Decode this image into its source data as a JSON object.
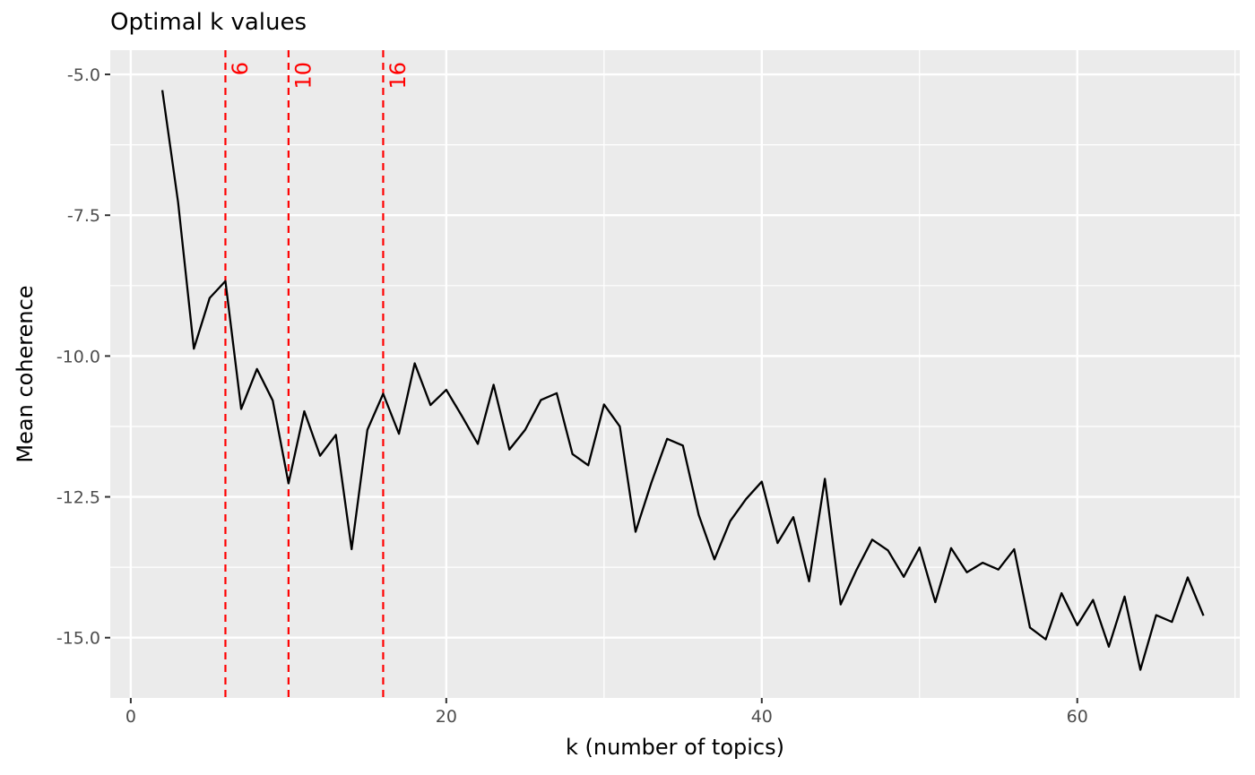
{
  "chart_data": {
    "type": "line",
    "title": "Optimal k values",
    "xlabel": "k (number of topics)",
    "ylabel": "Mean coherence",
    "xlim": [
      -1.3,
      70.3
    ],
    "ylim": [
      -16.07,
      -4.57
    ],
    "x_ticks": [
      0,
      20,
      40,
      60
    ],
    "x_tick_labels": [
      "0",
      "20",
      "40",
      "60"
    ],
    "y_ticks": [
      -5.0,
      -7.5,
      -10.0,
      -12.5,
      -15.0
    ],
    "y_tick_labels": [
      "-5.0",
      "-7.5",
      "-10.0",
      "-12.5",
      "-15.0"
    ],
    "grid": true,
    "background": "#ebebeb",
    "line_color": "#000000",
    "series": [
      {
        "x": [
          2,
          3,
          4,
          5,
          6,
          7,
          8,
          9,
          10,
          11,
          12,
          13,
          14,
          15,
          16,
          17,
          18,
          19,
          20,
          21,
          22,
          23,
          24,
          25,
          26,
          27,
          28,
          29,
          30,
          31,
          32,
          33,
          34,
          35,
          36,
          37,
          38,
          39,
          40,
          41,
          42,
          43,
          44,
          45,
          46,
          47,
          48,
          49,
          50,
          51,
          52,
          53,
          54,
          55,
          56,
          57,
          58,
          59,
          60,
          61,
          62,
          63,
          64,
          65,
          66,
          67,
          68
        ],
        "y": [
          -5.28,
          -7.27,
          -9.87,
          -8.97,
          -8.67,
          -10.94,
          -10.23,
          -10.79,
          -12.26,
          -10.98,
          -11.77,
          -11.4,
          -13.43,
          -11.31,
          -10.67,
          -11.38,
          -10.13,
          -10.87,
          -10.6,
          -11.07,
          -11.56,
          -10.51,
          -11.66,
          -11.31,
          -10.78,
          -10.66,
          -11.74,
          -11.94,
          -10.86,
          -11.25,
          -13.12,
          -12.25,
          -11.47,
          -11.59,
          -12.82,
          -13.61,
          -12.93,
          -12.54,
          -12.23,
          -13.32,
          -12.86,
          -14.0,
          -12.18,
          -14.41,
          -13.8,
          -13.26,
          -13.45,
          -13.92,
          -13.4,
          -14.37,
          -13.41,
          -13.84,
          -13.67,
          -13.79,
          -13.43,
          -14.82,
          -15.03,
          -14.21,
          -14.78,
          -14.33,
          -15.16,
          -14.27,
          -15.57,
          -14.6,
          -14.72,
          -13.93,
          -14.61
        ]
      }
    ],
    "vlines": [
      {
        "x": 6,
        "label": "6",
        "color": "#ff0000",
        "style": "dashed"
      },
      {
        "x": 10,
        "label": "10",
        "color": "#ff0000",
        "style": "dashed"
      },
      {
        "x": 16,
        "label": "16",
        "color": "#ff0000",
        "style": "dashed"
      }
    ]
  }
}
